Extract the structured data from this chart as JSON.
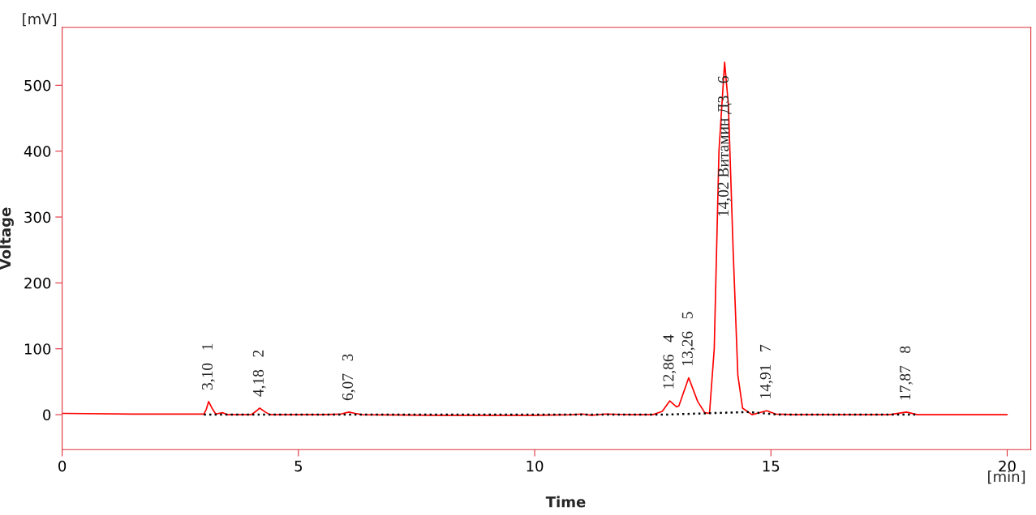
{
  "chart_data": {
    "type": "line",
    "xlabel": "Time",
    "ylabel": "Voltage",
    "xlim": [
      0,
      20.5
    ],
    "ylim": [
      -53,
      588
    ],
    "xticks": [
      0,
      5,
      10,
      15,
      20
    ],
    "yticks": [
      0,
      100,
      200,
      300,
      400,
      500
    ],
    "grid": false,
    "series": [
      {
        "color": "#ff0000",
        "line_style": "solid",
        "x": [
          0,
          1.5,
          2.5,
          3.0,
          3.05,
          3.1,
          3.17,
          3.25,
          3.4,
          3.5,
          4.0,
          4.1,
          4.18,
          4.3,
          4.4,
          5.5,
          5.9,
          6.07,
          6.2,
          6.35,
          8,
          10,
          10.8,
          11,
          11.2,
          11.5,
          12,
          12.5,
          12.7,
          12.86,
          13.0,
          13.05,
          13.26,
          13.45,
          13.6,
          13.7,
          13.8,
          13.9,
          14.02,
          14.1,
          14.2,
          14.3,
          14.4,
          14.6,
          14.91,
          15.1,
          15.5,
          17.5,
          17.87,
          18.1,
          20
        ],
        "values": [
          2,
          1,
          1,
          1,
          8,
          20,
          10,
          1,
          3,
          0,
          0,
          5,
          10,
          4,
          0,
          0,
          1,
          4,
          2,
          0,
          -1,
          -1,
          0,
          1,
          -1,
          1,
          0,
          0,
          5,
          21,
          12,
          13,
          56,
          20,
          3,
          2,
          100,
          400,
          535,
          470,
          250,
          60,
          10,
          0,
          6,
          1,
          0,
          0,
          4,
          0,
          0
        ]
      },
      {
        "color": "#000000",
        "line_style": "dotted",
        "x": [
          3.0,
          4.4,
          5.9,
          6.35,
          12.7,
          13.6,
          14.5,
          15.2,
          17.6,
          18.1
        ],
        "values": [
          0,
          0,
          0,
          0,
          0,
          2,
          4,
          0,
          0,
          0
        ]
      }
    ],
    "annotations": [
      "[mV]",
      "[min]",
      {
        "text": "3,10   1",
        "x": 3.1,
        "y": 20
      },
      {
        "text": "4,18   2",
        "x": 4.18,
        "y": 10
      },
      {
        "text": "6,07   3",
        "x": 6.07,
        "y": 4
      },
      {
        "text": "12,86   4",
        "x": 12.86,
        "y": 21
      },
      {
        "text": "13,26   5",
        "x": 13.26,
        "y": 56
      },
      {
        "text": "14,02 Витамин Д3   6",
        "x": 14.02,
        "y": 535
      },
      {
        "text": "14,91   7",
        "x": 14.91,
        "y": 6
      },
      {
        "text": "17,87   8",
        "x": 17.87,
        "y": 4
      }
    ]
  }
}
